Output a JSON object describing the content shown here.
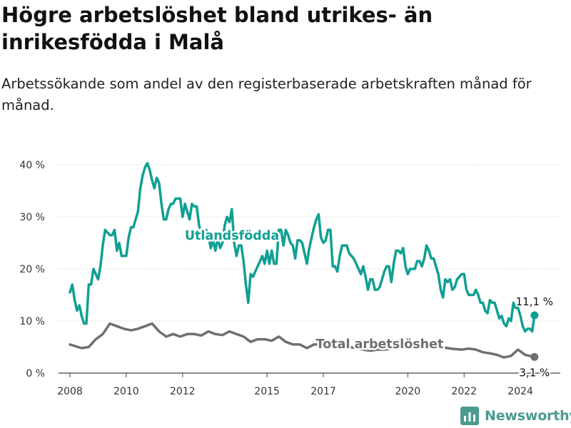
{
  "brand": {
    "name": "Newsworthy",
    "color": "#4a9b8f"
  },
  "chart_data": {
    "type": "line",
    "title": "Högre arbetslöshet bland utrikes- än inrikesfödda i Malå",
    "subtitle": "Arbetssökande som andel av den registerbaserade arbetskraften månad för månad.",
    "xlabel": "",
    "ylabel": "",
    "xlim": [
      "2007-06",
      "2025-06"
    ],
    "ylim": [
      0,
      40
    ],
    "grid": true,
    "x_ticks": [
      "2008",
      "2010",
      "2012",
      "2015",
      "2017",
      "2020",
      "2022",
      "2024"
    ],
    "y_ticks": [
      "0 %",
      "10 %",
      "20 %",
      "30 %",
      "40 %"
    ],
    "series": [
      {
        "name": "Utlandsfödda",
        "color": "#0fa092",
        "end_label": "11,1 %",
        "points": [
          [
            "2008-01",
            15.5
          ],
          [
            "2008-02",
            17
          ],
          [
            "2008-03",
            14
          ],
          [
            "2008-04",
            12
          ],
          [
            "2008-05",
            13
          ],
          [
            "2008-06",
            11
          ],
          [
            "2008-07",
            9.5
          ],
          [
            "2008-08",
            9.5
          ],
          [
            "2008-09",
            17
          ],
          [
            "2008-10",
            17
          ],
          [
            "2008-11",
            20
          ],
          [
            "2008-12",
            19
          ],
          [
            "2009-01",
            18
          ],
          [
            "2009-02",
            20.5
          ],
          [
            "2009-03",
            24.5
          ],
          [
            "2009-04",
            27.5
          ],
          [
            "2009-05",
            27
          ],
          [
            "2009-06",
            26.5
          ],
          [
            "2009-07",
            26.5
          ],
          [
            "2009-08",
            27.5
          ],
          [
            "2009-09",
            23.5
          ],
          [
            "2009-10",
            25
          ],
          [
            "2009-11",
            22.5
          ],
          [
            "2009-12",
            22.5
          ],
          [
            "2010-01",
            22.5
          ],
          [
            "2010-02",
            26
          ],
          [
            "2010-03",
            28
          ],
          [
            "2010-04",
            28
          ],
          [
            "2010-05",
            29.5
          ],
          [
            "2010-06",
            31
          ],
          [
            "2010-07",
            35.5
          ],
          [
            "2010-08",
            38
          ],
          [
            "2010-09",
            39.5
          ],
          [
            "2010-10",
            40.3
          ],
          [
            "2010-11",
            39
          ],
          [
            "2010-12",
            37
          ],
          [
            "2011-01",
            35.5
          ],
          [
            "2011-02",
            37.5
          ],
          [
            "2011-03",
            36.5
          ],
          [
            "2011-04",
            32.5
          ],
          [
            "2011-05",
            29.5
          ],
          [
            "2011-06",
            29.5
          ],
          [
            "2011-07",
            31.5
          ],
          [
            "2011-08",
            32.5
          ],
          [
            "2011-09",
            32.5
          ],
          [
            "2011-10",
            33.5
          ],
          [
            "2011-11",
            33.5
          ],
          [
            "2011-12",
            33.5
          ],
          [
            "2012-01",
            30
          ],
          [
            "2012-02",
            32.5
          ],
          [
            "2012-03",
            31
          ],
          [
            "2012-04",
            29.5
          ],
          [
            "2012-05",
            32.5
          ],
          [
            "2012-06",
            32
          ],
          [
            "2012-07",
            32
          ],
          [
            "2012-08",
            28.5
          ],
          [
            "2012-09",
            26.5
          ],
          [
            "2012-10",
            27
          ],
          [
            "2012-11",
            27.5
          ],
          [
            "2012-12",
            26.5
          ],
          [
            "2013-01",
            24
          ],
          [
            "2013-02",
            25.5
          ],
          [
            "2013-03",
            23.5
          ],
          [
            "2013-04",
            26
          ],
          [
            "2013-05",
            24
          ],
          [
            "2013-06",
            25
          ],
          [
            "2013-07",
            28.5
          ],
          [
            "2013-08",
            30
          ],
          [
            "2013-09",
            29
          ],
          [
            "2013-10",
            31.5
          ],
          [
            "2013-11",
            25
          ],
          [
            "2013-12",
            22.5
          ],
          [
            "2014-01",
            24.5
          ],
          [
            "2014-02",
            24.5
          ],
          [
            "2014-03",
            21.5
          ],
          [
            "2014-04",
            17
          ],
          [
            "2014-05",
            13.5
          ],
          [
            "2014-06",
            19
          ],
          [
            "2014-07",
            18.5
          ],
          [
            "2014-08",
            19.5
          ],
          [
            "2014-09",
            20.5
          ],
          [
            "2014-10",
            21.5
          ],
          [
            "2014-11",
            22.5
          ],
          [
            "2014-12",
            21
          ],
          [
            "2015-01",
            23.5
          ],
          [
            "2015-02",
            21
          ],
          [
            "2015-03",
            23.5
          ],
          [
            "2015-04",
            21
          ],
          [
            "2015-05",
            21
          ],
          [
            "2015-06",
            27.5
          ],
          [
            "2015-07",
            27.5
          ],
          [
            "2015-08",
            24.5
          ],
          [
            "2015-09",
            27.5
          ],
          [
            "2015-10",
            26.5
          ],
          [
            "2015-11",
            25
          ],
          [
            "2015-12",
            24.5
          ],
          [
            "2016-01",
            22
          ],
          [
            "2016-02",
            25.5
          ],
          [
            "2016-03",
            25.5
          ],
          [
            "2016-04",
            25
          ],
          [
            "2016-05",
            23
          ],
          [
            "2016-06",
            21
          ],
          [
            "2016-07",
            24
          ],
          [
            "2016-08",
            26
          ],
          [
            "2016-09",
            28
          ],
          [
            "2016-10",
            29.5
          ],
          [
            "2016-11",
            30.5
          ],
          [
            "2016-12",
            26
          ],
          [
            "2017-01",
            25
          ],
          [
            "2017-02",
            25.5
          ],
          [
            "2017-03",
            27.5
          ],
          [
            "2017-04",
            27.5
          ],
          [
            "2017-05",
            20.5
          ],
          [
            "2017-06",
            20.5
          ],
          [
            "2017-07",
            19.5
          ],
          [
            "2017-08",
            22.5
          ],
          [
            "2017-09",
            24.5
          ],
          [
            "2017-10",
            24.5
          ],
          [
            "2017-11",
            24.5
          ],
          [
            "2017-12",
            23
          ],
          [
            "2018-01",
            22.5
          ],
          [
            "2018-02",
            22
          ],
          [
            "2018-03",
            21
          ],
          [
            "2018-04",
            20
          ],
          [
            "2018-05",
            19
          ],
          [
            "2018-06",
            20.5
          ],
          [
            "2018-07",
            18.5
          ],
          [
            "2018-08",
            16
          ],
          [
            "2018-09",
            18
          ],
          [
            "2018-10",
            18
          ],
          [
            "2018-11",
            16
          ],
          [
            "2018-12",
            16
          ],
          [
            "2019-01",
            16.5
          ],
          [
            "2019-02",
            18
          ],
          [
            "2019-03",
            19.5
          ],
          [
            "2019-04",
            20.5
          ],
          [
            "2019-05",
            20.5
          ],
          [
            "2019-06",
            17.5
          ],
          [
            "2019-07",
            21
          ],
          [
            "2019-08",
            23.5
          ],
          [
            "2019-09",
            23.5
          ],
          [
            "2019-10",
            23
          ],
          [
            "2019-11",
            24
          ],
          [
            "2019-12",
            20.5
          ],
          [
            "2020-01",
            19
          ],
          [
            "2020-02",
            20
          ],
          [
            "2020-03",
            20
          ],
          [
            "2020-04",
            20
          ],
          [
            "2020-05",
            21.5
          ],
          [
            "2020-06",
            21.5
          ],
          [
            "2020-07",
            20.5
          ],
          [
            "2020-08",
            22
          ],
          [
            "2020-09",
            24.5
          ],
          [
            "2020-10",
            23.5
          ],
          [
            "2020-11",
            22
          ],
          [
            "2020-12",
            22
          ],
          [
            "2021-01",
            20.5
          ],
          [
            "2021-02",
            19
          ],
          [
            "2021-03",
            16
          ],
          [
            "2021-04",
            14.5
          ],
          [
            "2021-05",
            18
          ],
          [
            "2021-06",
            17.5
          ],
          [
            "2021-07",
            18
          ],
          [
            "2021-08",
            16
          ],
          [
            "2021-09",
            16.5
          ],
          [
            "2021-10",
            18
          ],
          [
            "2021-11",
            18.5
          ],
          [
            "2021-12",
            19
          ],
          [
            "2022-01",
            19
          ],
          [
            "2022-02",
            16
          ],
          [
            "2022-03",
            15
          ],
          [
            "2022-04",
            15
          ],
          [
            "2022-05",
            15
          ],
          [
            "2022-06",
            16
          ],
          [
            "2022-07",
            15
          ],
          [
            "2022-08",
            13.5
          ],
          [
            "2022-09",
            13.5
          ],
          [
            "2022-10",
            12
          ],
          [
            "2022-11",
            11.5
          ],
          [
            "2022-12",
            14
          ],
          [
            "2023-01",
            13.5
          ],
          [
            "2023-02",
            13.5
          ],
          [
            "2023-03",
            12
          ],
          [
            "2023-04",
            10.5
          ],
          [
            "2023-05",
            11
          ],
          [
            "2023-06",
            9.5
          ],
          [
            "2023-07",
            9
          ],
          [
            "2023-08",
            10.5
          ],
          [
            "2023-09",
            10
          ],
          [
            "2023-10",
            13.5
          ],
          [
            "2023-11",
            12.5
          ],
          [
            "2023-12",
            12.5
          ],
          [
            "2024-01",
            11
          ],
          [
            "2024-02",
            9
          ],
          [
            "2024-03",
            8
          ],
          [
            "2024-04",
            8.5
          ],
          [
            "2024-05",
            8.5
          ],
          [
            "2024-06",
            8
          ],
          [
            "2024-07",
            11.1
          ]
        ]
      },
      {
        "name": "Total arbetslöshet",
        "color": "#6e6e73",
        "end_label": "3,1 %",
        "points": [
          [
            "2008-01",
            5.5
          ],
          [
            "2008-03",
            5.2
          ],
          [
            "2008-06",
            4.8
          ],
          [
            "2008-09",
            5
          ],
          [
            "2008-12",
            6.5
          ],
          [
            "2009-03",
            7.5
          ],
          [
            "2009-06",
            9.5
          ],
          [
            "2009-09",
            9
          ],
          [
            "2009-12",
            8.5
          ],
          [
            "2010-03",
            8.2
          ],
          [
            "2010-06",
            8.5
          ],
          [
            "2010-09",
            9
          ],
          [
            "2010-12",
            9.5
          ],
          [
            "2011-03",
            8
          ],
          [
            "2011-06",
            7
          ],
          [
            "2011-09",
            7.5
          ],
          [
            "2011-12",
            7
          ],
          [
            "2012-03",
            7.5
          ],
          [
            "2012-06",
            7.5
          ],
          [
            "2012-09",
            7.2
          ],
          [
            "2012-12",
            8
          ],
          [
            "2013-03",
            7.5
          ],
          [
            "2013-06",
            7.3
          ],
          [
            "2013-09",
            8
          ],
          [
            "2013-12",
            7.5
          ],
          [
            "2014-03",
            7
          ],
          [
            "2014-06",
            6
          ],
          [
            "2014-09",
            6.5
          ],
          [
            "2014-12",
            6.5
          ],
          [
            "2015-03",
            6.2
          ],
          [
            "2015-06",
            7
          ],
          [
            "2015-09",
            6
          ],
          [
            "2015-12",
            5.5
          ],
          [
            "2016-03",
            5.5
          ],
          [
            "2016-06",
            4.8
          ],
          [
            "2016-09",
            5.5
          ],
          [
            "2016-12",
            5.5
          ],
          [
            "2017-03",
            5.8
          ],
          [
            "2017-06",
            5.5
          ],
          [
            "2017-09",
            5
          ],
          [
            "2017-12",
            5
          ],
          [
            "2018-03",
            4.8
          ],
          [
            "2018-06",
            4.5
          ],
          [
            "2018-09",
            4.3
          ],
          [
            "2018-12",
            4.5
          ],
          [
            "2019-03",
            4.5
          ],
          [
            "2019-06",
            4.7
          ],
          [
            "2019-09",
            4.8
          ],
          [
            "2019-12",
            4.8
          ],
          [
            "2020-03",
            4.9
          ],
          [
            "2020-06",
            5.5
          ],
          [
            "2020-09",
            5.2
          ],
          [
            "2020-12",
            5
          ],
          [
            "2021-03",
            5
          ],
          [
            "2021-06",
            4.8
          ],
          [
            "2021-09",
            4.6
          ],
          [
            "2021-12",
            4.5
          ],
          [
            "2022-03",
            4.7
          ],
          [
            "2022-06",
            4.5
          ],
          [
            "2022-09",
            4
          ],
          [
            "2022-12",
            3.8
          ],
          [
            "2023-03",
            3.5
          ],
          [
            "2023-06",
            3
          ],
          [
            "2023-09",
            3.3
          ],
          [
            "2023-12",
            4.5
          ],
          [
            "2024-03",
            3.5
          ],
          [
            "2024-07",
            3.1
          ]
        ]
      }
    ]
  }
}
